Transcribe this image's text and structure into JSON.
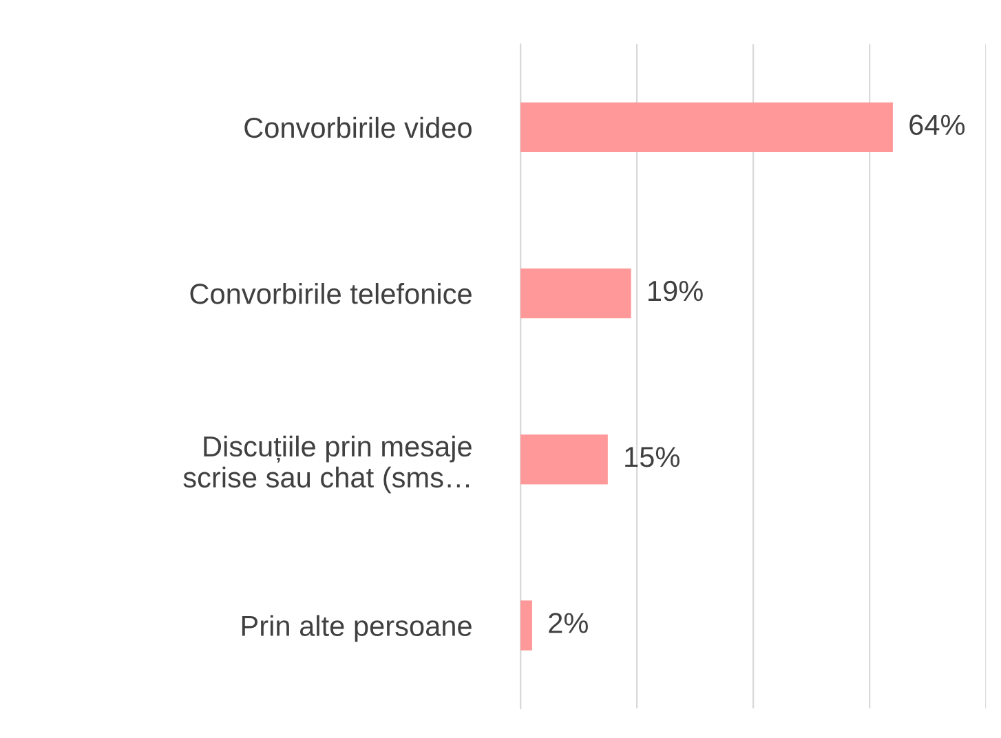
{
  "chart_data": {
    "type": "bar",
    "orientation": "horizontal",
    "categories": [
      "Convorbirile video",
      "Convorbirile telefonice",
      "Discuțiile prin mesaje\nscrise sau chat (sms…",
      "Prin alte persoane"
    ],
    "values": [
      64,
      19,
      15,
      2
    ],
    "value_labels": [
      "64%",
      "19%",
      "15%",
      "2%"
    ],
    "color": "#ff9999",
    "xlim": [
      0,
      80
    ],
    "xticks": [
      {
        "value": 0,
        "label": null
      },
      {
        "value": 20,
        "label": null
      },
      {
        "value": 40,
        "label": null
      },
      {
        "value": 60,
        "label": null
      },
      {
        "value": 80,
        "label": null
      }
    ],
    "tick_labels": "y",
    "grid": "x",
    "legend": false
  }
}
